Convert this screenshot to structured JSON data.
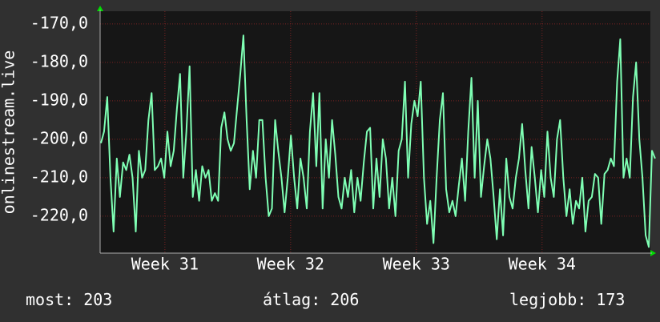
{
  "chart_data": {
    "type": "line",
    "y_label": "onlinestream.live",
    "color": "#7fffb4",
    "grid": true,
    "ylim": [
      -229.6,
      -166.7
    ],
    "yticks": [
      {
        "value": -170,
        "label": "-170,0"
      },
      {
        "value": -180,
        "label": "-180,0"
      },
      {
        "value": -190,
        "label": "-190,0"
      },
      {
        "value": -200,
        "label": "-200,0"
      },
      {
        "value": -210,
        "label": "-210,0"
      },
      {
        "value": -220,
        "label": "-220,0"
      }
    ],
    "xlim": [
      -0.25,
      173.5
    ],
    "xticks": [
      {
        "value": 20.2,
        "label": "Week 31"
      },
      {
        "value": 59.9,
        "label": "Week 32"
      },
      {
        "value": 99.6,
        "label": "Week 33"
      },
      {
        "value": 139.3,
        "label": "Week 34"
      }
    ],
    "values": [
      -201,
      -198,
      -189,
      -210,
      -224,
      -205,
      -215,
      -206,
      -208,
      -204,
      -210,
      -224,
      -203,
      -210,
      -208,
      -195,
      -188,
      -208,
      -207,
      -205,
      -210,
      -198,
      -207,
      -203,
      -192,
      -183,
      -210,
      -198,
      -181,
      -215,
      -208,
      -216,
      -207,
      -210,
      -208,
      -216,
      -214,
      -216,
      -197,
      -193,
      -200,
      -203,
      -201,
      -192,
      -183,
      -173,
      -195,
      -213,
      -203,
      -210,
      -195,
      -195,
      -210,
      -220,
      -218,
      -195,
      -203,
      -210,
      -219,
      -210,
      -199,
      -210,
      -218,
      -205,
      -210,
      -218,
      -198,
      -188,
      -207,
      -188,
      -218,
      -200,
      -210,
      -195,
      -204,
      -215,
      -218,
      -210,
      -215,
      -208,
      -219,
      -210,
      -216,
      -206,
      -198,
      -197,
      -218,
      -205,
      -215,
      -200,
      -205,
      -218,
      -210,
      -220,
      -203,
      -200,
      -185,
      -210,
      -196,
      -190,
      -194,
      -185,
      -210,
      -222,
      -216,
      -227,
      -210,
      -195,
      -188,
      -213,
      -219,
      -216,
      -220,
      -212,
      -205,
      -216,
      -198,
      -184,
      -210,
      -190,
      -215,
      -207,
      -200,
      -205,
      -215,
      -226,
      -213,
      -225,
      -205,
      -215,
      -218,
      -210,
      -205,
      -196,
      -208,
      -218,
      -202,
      -210,
      -219,
      -208,
      -215,
      -198,
      -210,
      -215,
      -200,
      -195,
      -210,
      -220,
      -213,
      -222,
      -216,
      -218,
      -210,
      -224,
      -216,
      -215,
      -209,
      -210,
      -222,
      -209,
      -208,
      -205,
      -207,
      -185,
      -174,
      -210,
      -205,
      -210,
      -189,
      -180,
      -200,
      -210,
      -225,
      -228,
      -203,
      -205
    ],
    "stats": [
      {
        "label": "most:",
        "value": 203
      },
      {
        "label": "átlag:",
        "value": 206
      },
      {
        "label": "legjobb:",
        "value": 173
      }
    ]
  }
}
